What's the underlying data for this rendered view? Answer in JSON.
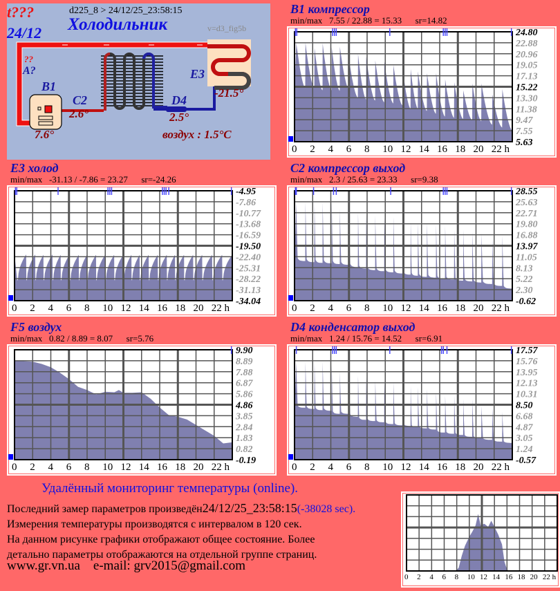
{
  "diagram": {
    "status": "t???",
    "date": "24/12",
    "device": "d225_8  >  24/12/25_23:58:15",
    "title": "Холодильник",
    "version": "v=d3_fig5b",
    "unknown_mark": "??",
    "a_label": "A?",
    "b1_label": "B1",
    "b1_value": "7.6°",
    "c2_label": "C2",
    "c2_value": "2.6°",
    "d4_label": "D4",
    "d4_value": "2.5°",
    "e3_label": "E3",
    "e3_value": "-21.5°",
    "air": "воздух : 1.5°C",
    "colors": {
      "hot": "#ee1111",
      "cold": "#1a1aa0",
      "panel": "#a6b6d8"
    }
  },
  "chart_data": [
    {
      "type": "area",
      "title": "B1 компрессор",
      "minmax": "min/max   7.55 / 22.88 = 15.33      sr=14.82",
      "ylim": [
        5.63,
        24.8
      ],
      "y_labels": [
        "24.80",
        "22.88",
        "20.96",
        "19.05",
        "17.13",
        "15.22",
        "13.30",
        "11.38",
        "9.47",
        "7.55",
        "5.63"
      ],
      "x_labels": [
        "0",
        "2",
        "4",
        "6",
        "8",
        "10",
        "12",
        "14",
        "16",
        "18",
        "20",
        "22 h"
      ],
      "shape": "decay",
      "cycle_start_h": [
        0.2,
        1.2,
        2.2,
        3.1,
        4.1,
        5.0,
        6.0,
        7.0,
        7.9,
        8.9,
        9.9,
        10.9,
        11.9,
        12.8,
        13.6,
        14.6,
        15.6,
        16.6,
        17.6,
        18.6,
        19.6,
        20.6,
        21.8,
        22.9
      ],
      "peak": [
        22.9,
        22.9,
        22.0,
        22.8,
        22.1,
        22.2,
        20.1,
        20.9,
        20.5,
        19.8,
        19.6,
        19.0,
        18.6,
        18.3,
        17.9,
        17.6,
        17.6,
        16.5,
        16.0,
        14.6,
        15.8,
        15.8,
        13.9,
        14.8
      ],
      "base": [
        15.0,
        15.0,
        14.6,
        14.6,
        14.5,
        14.8,
        13.3,
        13.0,
        12.8,
        12.5,
        12.3,
        12.0,
        11.4,
        11.4,
        11.0,
        10.5,
        10.0,
        9.8,
        9.6,
        9.4,
        9.2,
        8.6,
        8.1,
        7.6
      ],
      "event_marks_h": [
        0.1,
        0.25,
        4.2,
        4.4,
        4.6,
        10.5,
        16.4,
        16.6,
        16.8,
        23.9
      ]
    },
    {
      "type": "area",
      "title": "E3 холод",
      "minmax": "min/max   -31.13 / -7.86 = 23.27      sr=-24.26",
      "ylim": [
        -34.04,
        -4.95
      ],
      "y_labels": [
        "-4.95",
        "-7.86",
        "-10.77",
        "-13.68",
        "-16.59",
        "-19.50",
        "-22.40",
        "-25.31",
        "-28.22",
        "-31.13",
        "-34.04"
      ],
      "x_labels": [
        "0",
        "2",
        "4",
        "6",
        "8",
        "10",
        "12",
        "14",
        "16",
        "18",
        "20",
        "22 h"
      ],
      "shape": "ramp",
      "cycle_start_h": [
        0.3,
        1.3,
        2.3,
        3.2,
        4.2,
        5.1,
        6.1,
        7.1,
        8.0,
        9.0,
        10.0,
        11.0,
        12.0,
        12.9,
        13.8,
        14.8,
        15.8,
        16.8,
        17.7,
        18.7,
        19.7,
        20.7,
        21.8,
        22.9
      ],
      "peak": [
        -21.8,
        -21.8,
        -21.9,
        -21.8,
        -21.9,
        -21.8,
        -21.9,
        -21.9,
        -21.9,
        -21.9,
        -21.9,
        -21.9,
        -21.9,
        -21.9,
        -21.9,
        -21.9,
        -21.9,
        -21.9,
        -21.9,
        -21.9,
        -21.9,
        -21.9,
        -21.9,
        -21.9
      ],
      "base": [
        -28.6,
        -28.6,
        -28.6,
        -28.6,
        -28.6,
        -28.6,
        -28.6,
        -28.6,
        -28.6,
        -28.6,
        -28.6,
        -28.6,
        -28.6,
        -28.6,
        -28.6,
        -28.6,
        -28.6,
        -28.6,
        -28.6,
        -28.6,
        -28.6,
        -28.6,
        -28.6,
        -28.6
      ],
      "event_marks_h": [
        0.1,
        0.25,
        4.8,
        10.3,
        10.5,
        10.7,
        16.3,
        16.5,
        16.7,
        17.0,
        23.9
      ]
    },
    {
      "type": "area",
      "title": "C2 компрессор выход",
      "minmax": "min/max   2.3 / 25.63 = 23.33      sr=9.38",
      "ylim": [
        -0.62,
        28.55
      ],
      "y_labels": [
        "28.55",
        "25.63",
        "22.71",
        "19.80",
        "16.88",
        "13.97",
        "11.05",
        "8.13",
        "5.22",
        "2.30",
        "-0.62"
      ],
      "x_labels": [
        "0",
        "2",
        "4",
        "6",
        "8",
        "10",
        "12",
        "14",
        "16",
        "18",
        "20",
        "22 h"
      ],
      "shape": "spike",
      "cycle_start_h": [
        0.2,
        1.2,
        2.2,
        3.1,
        4.1,
        5.0,
        6.0,
        7.0,
        7.9,
        8.9,
        9.9,
        10.9,
        11.9,
        12.8,
        13.6,
        14.6,
        15.6,
        16.6,
        17.6,
        18.6,
        19.6,
        20.6,
        21.8,
        22.9
      ],
      "peak": [
        25.6,
        25.6,
        25.6,
        25.6,
        25.6,
        23.8,
        25.0,
        22.9,
        22.4,
        22.0,
        21.6,
        21.6,
        20.5,
        20.5,
        20.2,
        20.2,
        19.5,
        19.2,
        18.2,
        18.2,
        17.6,
        17.2,
        16.0,
        16.7
      ],
      "base": [
        9.9,
        9.6,
        9.4,
        9.3,
        9.1,
        8.9,
        8.3,
        7.9,
        7.5,
        7.2,
        6.9,
        6.6,
        6.3,
        6.0,
        5.7,
        5.5,
        5.2,
        5.0,
        4.7,
        4.5,
        4.2,
        3.8,
        3.3,
        2.6
      ],
      "event_marks_h": [
        0.1,
        0.2,
        2.1,
        4.3,
        4.6,
        10.6,
        16.4,
        16.6,
        16.8,
        23.9
      ]
    },
    {
      "type": "area",
      "title": "F5 воздух",
      "minmax": "min/max   0.82 / 8.89 = 8.07      sr=5.76",
      "ylim": [
        -0.19,
        9.9
      ],
      "y_labels": [
        "9.90",
        "8.89",
        "7.88",
        "6.87",
        "5.86",
        "4.86",
        "3.85",
        "2.84",
        "1.83",
        "0.82",
        "-0.19"
      ],
      "x_labels": [
        "0",
        "2",
        "4",
        "6",
        "8",
        "10",
        "12",
        "14",
        "16",
        "18",
        "20",
        "22 h"
      ],
      "shape": "line",
      "points": [
        [
          0,
          8.9
        ],
        [
          1,
          8.85
        ],
        [
          2,
          8.8
        ],
        [
          3,
          8.6
        ],
        [
          4,
          8.3
        ],
        [
          5,
          7.8
        ],
        [
          6,
          7.2
        ],
        [
          7,
          6.5
        ],
        [
          8,
          6.2
        ],
        [
          9,
          5.8
        ],
        [
          10,
          6.05
        ],
        [
          11,
          6.0
        ],
        [
          11.5,
          6.2
        ],
        [
          12,
          5.95
        ],
        [
          13,
          5.95
        ],
        [
          14,
          6.0
        ],
        [
          15,
          5.4
        ],
        [
          16,
          4.6
        ],
        [
          17,
          3.9
        ],
        [
          18,
          3.75
        ],
        [
          19,
          3.5
        ],
        [
          20,
          3.0
        ],
        [
          21,
          2.5
        ],
        [
          22,
          2.0
        ],
        [
          23,
          1.3
        ],
        [
          24,
          1.4
        ]
      ],
      "event_marks_h": [
        23.9
      ]
    },
    {
      "type": "area",
      "title": "D4 конденсатор выход",
      "minmax": "min/max   1.24 / 15.76 = 14.52      sr=6.91",
      "ylim": [
        -0.57,
        17.57
      ],
      "y_labels": [
        "17.57",
        "15.76",
        "13.95",
        "12.13",
        "10.31",
        "8.50",
        "6.68",
        "4.87",
        "3.05",
        "1.24",
        "-0.57"
      ],
      "x_labels": [
        "0",
        "2",
        "4",
        "6",
        "8",
        "10",
        "12",
        "14",
        "16",
        "18",
        "20",
        "22 h"
      ],
      "shape": "spike",
      "cycle_start_h": [
        0.2,
        1.2,
        2.2,
        3.1,
        4.1,
        5.0,
        6.0,
        7.0,
        7.9,
        8.9,
        9.9,
        10.9,
        11.9,
        12.8,
        13.6,
        14.6,
        15.6,
        16.6,
        17.6,
        18.6,
        19.6,
        20.6,
        21.8,
        22.9
      ],
      "peak": [
        15.6,
        15.6,
        15.6,
        15.6,
        15.0,
        14.0,
        14.8,
        13.3,
        13.1,
        12.6,
        12.4,
        12.2,
        11.7,
        11.6,
        11.4,
        11.1,
        10.6,
        10.0,
        10.0,
        9.4,
        9.4,
        8.3,
        8.1,
        7.3
      ],
      "base": [
        8.0,
        7.8,
        7.6,
        7.5,
        7.0,
        7.0,
        6.5,
        6.0,
        5.8,
        5.6,
        5.3,
        5.1,
        5.0,
        4.8,
        4.6,
        4.4,
        3.9,
        3.7,
        3.5,
        3.2,
        3.0,
        2.7,
        2.4,
        2.2
      ],
      "event_marks_h": [
        0.2,
        4.2,
        4.4,
        4.6,
        10.5,
        16.2,
        16.4,
        16.8,
        23.9
      ]
    }
  ],
  "mini_chart": {
    "type": "area",
    "x_labels": [
      "0",
      "2",
      "4",
      "6",
      "8",
      "10",
      "12",
      "14",
      "16",
      "18",
      "20",
      "22 h"
    ],
    "ylim": [
      0,
      1
    ],
    "points": [
      [
        0,
        0
      ],
      [
        7.8,
        0
      ],
      [
        8.3,
        0.04
      ],
      [
        8.8,
        0.2
      ],
      [
        9.3,
        0.33
      ],
      [
        10,
        0.45
      ],
      [
        10.5,
        0.52
      ],
      [
        11,
        0.6
      ],
      [
        11.4,
        0.75
      ],
      [
        11.8,
        0.6
      ],
      [
        12.4,
        0.62
      ],
      [
        13,
        0.58
      ],
      [
        13.5,
        0.66
      ],
      [
        14,
        0.58
      ],
      [
        14.6,
        0.48
      ],
      [
        15.2,
        0.35
      ],
      [
        15.6,
        0.12
      ],
      [
        16,
        0.02
      ],
      [
        16.3,
        0
      ],
      [
        24,
        0
      ]
    ]
  },
  "footer": {
    "headline": "Удалённый мониторинг температуры (online).",
    "last_prefix": "Последний замер параметров произведён",
    "last_time": "24/12/25_23:58:15",
    "last_ago": "(-38028 sec).",
    "line2": "Измерения температуры  производятся с интервалом в 120 сек.",
    "line3": "На данном рисунке графики отображают общее состояние. Более",
    "line4": "детально параметры отображаются на отдельной группе страниц.",
    "website": "www.gr.vn.ua",
    "email": "e-mail: grv2015@gmail.com"
  }
}
